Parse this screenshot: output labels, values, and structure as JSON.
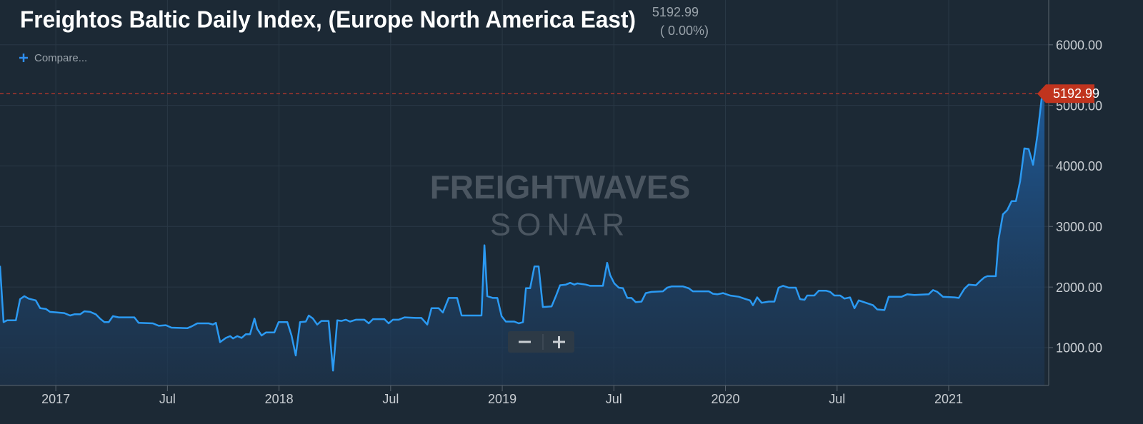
{
  "chart_data": {
    "type": "area",
    "title": "Freightos Baltic Daily Index, (Europe North America East)",
    "current_value": 5192.99,
    "change_label": "( 0.00%)",
    "compare_label": "Compare...",
    "watermark": [
      "FREIGHTWAVES",
      "SONAR"
    ],
    "x": [
      2016.75,
      2016.766,
      2016.782,
      2016.821,
      2016.84,
      2016.859,
      2016.878,
      2016.91,
      2016.93,
      2016.955,
      2016.974,
      2017.038,
      2017.064,
      2017.083,
      2017.109,
      2017.128,
      2017.154,
      2017.179,
      2017.198,
      2017.218,
      2017.237,
      2017.256,
      2017.282,
      2017.352,
      2017.371,
      2017.435,
      2017.461,
      2017.493,
      2017.518,
      2017.589,
      2017.608,
      2017.634,
      2017.685,
      2017.704,
      2017.717,
      2017.736,
      2017.762,
      2017.781,
      2017.794,
      2017.813,
      2017.832,
      2017.851,
      2017.87,
      2017.89,
      2017.902,
      2017.922,
      2017.941,
      2017.979,
      2017.998,
      2018.037,
      2018.056,
      2018.075,
      2018.094,
      2018.12,
      2018.133,
      2018.152,
      2018.171,
      2018.19,
      2018.222,
      2018.242,
      2018.261,
      2018.28,
      2018.299,
      2018.318,
      2018.344,
      2018.382,
      2018.402,
      2018.421,
      2018.472,
      2018.491,
      2018.51,
      2018.536,
      2018.562,
      2018.613,
      2018.638,
      2018.664,
      2018.683,
      2018.715,
      2018.734,
      2018.76,
      2018.798,
      2018.818,
      2018.888,
      2018.907,
      2018.92,
      2018.933,
      2018.958,
      2018.978,
      2018.997,
      2019.016,
      2019.054,
      2019.074,
      2019.093,
      2019.106,
      2019.125,
      2019.144,
      2019.163,
      2019.182,
      2019.221,
      2019.24,
      2019.259,
      2019.285,
      2019.304,
      2019.323,
      2019.336,
      2019.374,
      2019.394,
      2019.451,
      2019.47,
      2019.483,
      2019.502,
      2019.522,
      2019.541,
      2019.56,
      2019.579,
      2019.598,
      2019.624,
      2019.643,
      2019.669,
      2019.72,
      2019.739,
      2019.758,
      2019.81,
      2019.835,
      2019.854,
      2019.925,
      2019.944,
      2019.963,
      2019.989,
      2020.021,
      2020.059,
      2020.091,
      2020.11,
      2020.123,
      2020.142,
      2020.162,
      2020.194,
      2020.219,
      2020.238,
      2020.258,
      2020.283,
      2020.315,
      2020.334,
      2020.354,
      2020.366,
      2020.398,
      2020.418,
      2020.45,
      2020.469,
      2020.488,
      2020.514,
      2020.533,
      2020.558,
      2020.578,
      2020.597,
      2020.629,
      2020.661,
      2020.68,
      2020.712,
      2020.731,
      2020.789,
      2020.814,
      2020.846,
      2020.91,
      2020.93,
      2020.949,
      2020.974,
      2021.026,
      2021.045,
      2021.07,
      2021.09,
      2021.122,
      2021.141,
      2021.16,
      2021.173,
      2021.211,
      2021.224,
      2021.243,
      2021.262,
      2021.282,
      2021.301,
      2021.32,
      2021.339,
      2021.358,
      2021.378,
      2021.397,
      2021.416,
      2021.429
    ],
    "series": [
      {
        "color": "#2b9af3",
        "values": [
          2350,
          1420,
          1450,
          1450,
          1800,
          1850,
          1810,
          1780,
          1650,
          1640,
          1590,
          1570,
          1530,
          1550,
          1550,
          1600,
          1590,
          1550,
          1480,
          1420,
          1420,
          1520,
          1500,
          1500,
          1410,
          1400,
          1360,
          1370,
          1330,
          1320,
          1350,
          1400,
          1400,
          1380,
          1410,
          1090,
          1160,
          1190,
          1150,
          1190,
          1160,
          1220,
          1220,
          1480,
          1310,
          1200,
          1250,
          1250,
          1420,
          1420,
          1200,
          870,
          1420,
          1430,
          1530,
          1480,
          1380,
          1440,
          1440,
          620,
          1450,
          1440,
          1460,
          1430,
          1460,
          1460,
          1400,
          1470,
          1470,
          1400,
          1460,
          1460,
          1500,
          1490,
          1490,
          1380,
          1650,
          1650,
          1580,
          1820,
          1820,
          1530,
          1530,
          1530,
          2690,
          1850,
          1820,
          1820,
          1520,
          1430,
          1430,
          1400,
          1420,
          1980,
          1980,
          2340,
          2340,
          1670,
          1680,
          1850,
          2030,
          2040,
          2070,
          2040,
          2060,
          2040,
          2020,
          2020,
          2400,
          2200,
          2060,
          1990,
          1980,
          1820,
          1820,
          1750,
          1760,
          1900,
          1920,
          1930,
          1990,
          2010,
          2010,
          1980,
          1930,
          1930,
          1890,
          1880,
          1900,
          1860,
          1840,
          1800,
          1780,
          1700,
          1830,
          1740,
          1760,
          1760,
          1990,
          2020,
          1990,
          1990,
          1800,
          1790,
          1860,
          1860,
          1940,
          1940,
          1920,
          1860,
          1860,
          1810,
          1830,
          1650,
          1780,
          1740,
          1700,
          1630,
          1620,
          1840,
          1840,
          1880,
          1870,
          1880,
          1950,
          1920,
          1840,
          1830,
          1820,
          1970,
          2040,
          2030,
          2100,
          2160,
          2180,
          2180,
          2800,
          3200,
          3270,
          3420,
          3420,
          3750,
          4290,
          4280,
          4020,
          4500,
          5100,
          5192.99
        ]
      }
    ],
    "xlim": [
      2016.75,
      2021.448
    ],
    "xticks": [
      {
        "value": 2017,
        "label": "2017"
      },
      {
        "value": 2017.5,
        "label": "Jul"
      },
      {
        "value": 2018,
        "label": "2018"
      },
      {
        "value": 2018.5,
        "label": "Jul"
      },
      {
        "value": 2019,
        "label": "2019"
      },
      {
        "value": 2019.5,
        "label": "Jul"
      },
      {
        "value": 2020,
        "label": "2020"
      },
      {
        "value": 2020.5,
        "label": "Jul"
      },
      {
        "value": 2021,
        "label": "2021"
      }
    ],
    "ylim": [
      375,
      6740
    ],
    "yticks": [
      {
        "value": 1000,
        "label": "1000.00"
      },
      {
        "value": 2000,
        "label": "2000.00"
      },
      {
        "value": 3000,
        "label": "3000.00"
      },
      {
        "value": 4000,
        "label": "4000.00"
      },
      {
        "value": 5000,
        "label": "5000.00"
      },
      {
        "value": 6000,
        "label": "6000.00"
      }
    ],
    "grid": true
  }
}
